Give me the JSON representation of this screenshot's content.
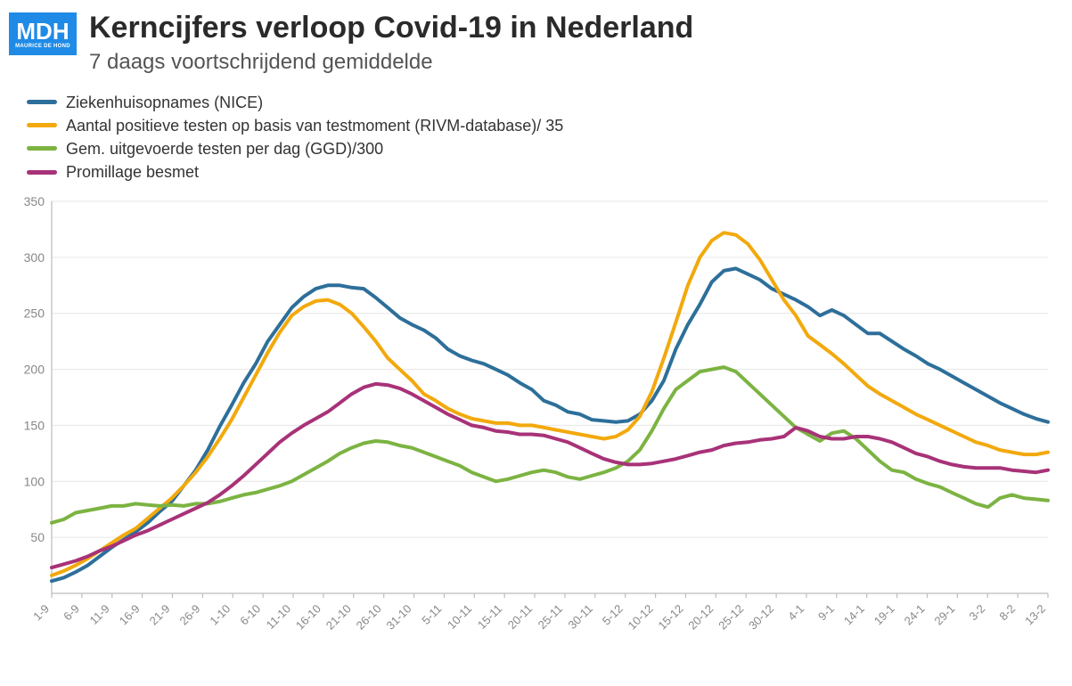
{
  "logo": {
    "main": "MDH",
    "sub": "MAURICE DE HOND"
  },
  "title": "Kerncijfers verloop Covid-19 in Nederland",
  "subtitle": "7 daags voortschrijdend gemiddelde",
  "chart": {
    "type": "line",
    "background_color": "#ffffff",
    "grid_color": "#e6e6e6",
    "axis_color": "#bcbcbc",
    "tick_font_color": "#888888",
    "title_fontsize": 34,
    "subtitle_fontsize": 24,
    "legend_fontsize": 18,
    "tick_fontsize": 14,
    "line_width": 4,
    "ylim": [
      0,
      350
    ],
    "ytick_step": 50,
    "yticks": [
      50,
      100,
      150,
      200,
      250,
      300,
      350
    ],
    "x_labels": [
      "1-9",
      "6-9",
      "11-9",
      "16-9",
      "21-9",
      "26-9",
      "1-10",
      "6-10",
      "11-10",
      "16-10",
      "21-10",
      "26-10",
      "31-10",
      "5-11",
      "10-11",
      "15-11",
      "20-11",
      "25-11",
      "30-11",
      "5-12",
      "10-12",
      "15-12",
      "20-12",
      "25-12",
      "30-12",
      "4-1",
      "9-1",
      "14-1",
      "19-1",
      "24-1",
      "29-1",
      "3-2",
      "8-2",
      "13-2"
    ],
    "series": [
      {
        "key": "ziekenhuis",
        "label": "Ziekenhuisopnames (NICE)",
        "color": "#2d6f9a",
        "values": [
          11,
          14,
          19,
          25,
          33,
          41,
          48,
          55,
          63,
          73,
          82,
          96,
          110,
          128,
          149,
          168,
          188,
          205,
          225,
          240,
          255,
          265,
          272,
          275,
          275,
          273,
          272,
          264,
          255,
          246,
          240,
          235,
          228,
          218,
          212,
          208,
          205,
          200,
          195,
          188,
          182,
          172,
          168,
          162,
          160,
          155,
          154,
          153,
          154,
          160,
          172,
          190,
          218,
          240,
          258,
          278,
          288,
          290,
          285,
          280,
          272,
          267,
          262,
          256,
          248,
          253,
          248,
          240,
          232,
          232,
          225,
          218,
          212,
          205,
          200,
          194,
          188,
          182,
          176,
          170,
          165,
          160,
          156,
          153
        ]
      },
      {
        "key": "positieve",
        "label": "Aantal positieve testen op basis van testmoment (RIVM-database)/ 35",
        "color": "#f2a90d",
        "values": [
          16,
          20,
          25,
          31,
          38,
          45,
          52,
          58,
          67,
          76,
          85,
          96,
          108,
          122,
          138,
          155,
          175,
          195,
          215,
          233,
          248,
          256,
          261,
          262,
          258,
          250,
          238,
          225,
          210,
          200,
          190,
          178,
          172,
          165,
          160,
          156,
          154,
          152,
          152,
          150,
          150,
          148,
          146,
          144,
          142,
          140,
          138,
          140,
          146,
          158,
          180,
          210,
          242,
          275,
          300,
          315,
          322,
          320,
          312,
          298,
          280,
          262,
          248,
          230,
          222,
          214,
          205,
          195,
          185,
          178,
          172,
          166,
          160,
          155,
          150,
          145,
          140,
          135,
          132,
          128,
          126,
          124,
          124,
          126
        ]
      },
      {
        "key": "testen",
        "label": "Gem. uitgevoerde testen per dag (GGD)/300",
        "color": "#7cb342",
        "values": [
          63,
          66,
          72,
          74,
          76,
          78,
          78,
          80,
          79,
          78,
          79,
          78,
          80,
          80,
          82,
          85,
          88,
          90,
          93,
          96,
          100,
          106,
          112,
          118,
          125,
          130,
          134,
          136,
          135,
          132,
          130,
          126,
          122,
          118,
          114,
          108,
          104,
          100,
          102,
          105,
          108,
          110,
          108,
          104,
          102,
          105,
          108,
          112,
          118,
          128,
          145,
          165,
          182,
          190,
          198,
          200,
          202,
          198,
          188,
          178,
          168,
          158,
          148,
          142,
          136,
          143,
          145,
          138,
          128,
          118,
          110,
          108,
          102,
          98,
          95,
          90,
          85,
          80,
          77,
          85,
          88,
          85,
          84,
          83
        ]
      },
      {
        "key": "promillage",
        "label": "Promillage besmet",
        "color": "#a83278",
        "values": [
          23,
          26,
          29,
          33,
          38,
          42,
          47,
          52,
          56,
          61,
          66,
          71,
          76,
          81,
          88,
          96,
          105,
          115,
          125,
          135,
          143,
          150,
          156,
          162,
          170,
          178,
          184,
          187,
          186,
          183,
          178,
          172,
          166,
          160,
          155,
          150,
          148,
          145,
          144,
          142,
          142,
          141,
          138,
          135,
          130,
          125,
          120,
          117,
          115,
          115,
          116,
          118,
          120,
          123,
          126,
          128,
          132,
          134,
          135,
          137,
          138,
          140,
          148,
          145,
          140,
          138,
          138,
          140,
          140,
          138,
          135,
          130,
          125,
          122,
          118,
          115,
          113,
          112,
          112,
          112,
          110,
          109,
          108,
          110
        ]
      }
    ]
  }
}
